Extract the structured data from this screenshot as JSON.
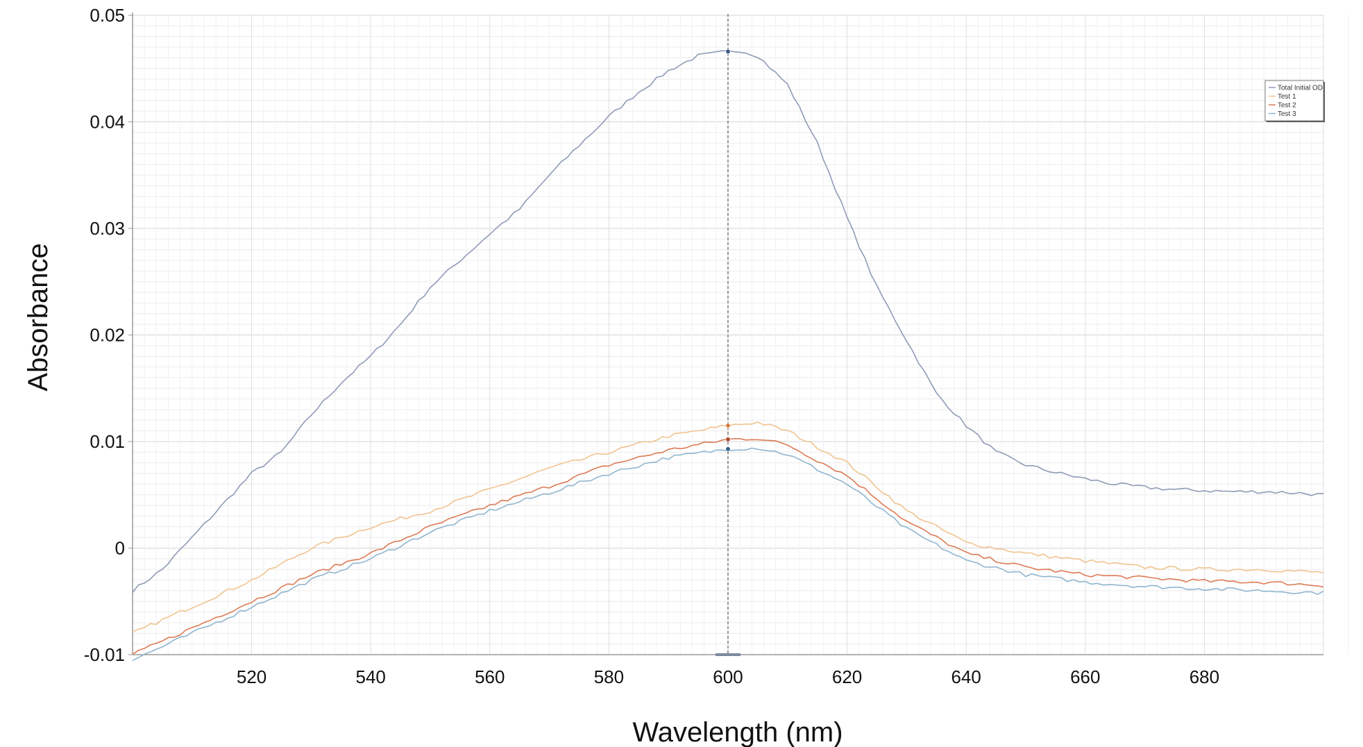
{
  "chart_data": {
    "type": "line",
    "title": "",
    "xlabel": "Wavelength (nm)",
    "ylabel": "Absorbance",
    "xlim": [
      500,
      700
    ],
    "ylim": [
      -0.01,
      0.05
    ],
    "x_ticks": [
      520,
      540,
      560,
      580,
      600,
      620,
      640,
      660,
      680
    ],
    "x_tick_labels": [
      "520",
      "540",
      "560",
      "580",
      "600",
      "620",
      "640",
      "660",
      "680"
    ],
    "y_ticks": [
      -0.01,
      0,
      0.01,
      0.02,
      0.03,
      0.04,
      0.05
    ],
    "y_tick_labels": [
      "-0.01",
      "0",
      "0.01",
      "0.02",
      "0.03",
      "0.04",
      "0.05"
    ],
    "grid": true,
    "legend_position": "top-right",
    "cursor_x": 600,
    "series": [
      {
        "name": "Total Initial OD",
        "color": "#8e9bb5",
        "x": [
          500,
          505,
          510,
          515,
          520,
          525,
          530,
          535,
          540,
          545,
          550,
          555,
          560,
          565,
          570,
          575,
          580,
          585,
          590,
          595,
          600,
          602,
          605,
          610,
          615,
          620,
          625,
          630,
          635,
          640,
          645,
          650,
          655,
          660,
          665,
          670,
          675,
          680,
          685,
          690,
          695,
          700
        ],
        "y": [
          -0.004,
          -0.002,
          0.001,
          0.004,
          0.007,
          0.009,
          0.0125,
          0.0155,
          0.018,
          0.021,
          0.0245,
          0.027,
          0.0295,
          0.0318,
          0.035,
          0.0378,
          0.0405,
          0.0428,
          0.0448,
          0.0462,
          0.0466,
          0.0467,
          0.0462,
          0.0435,
          0.038,
          0.031,
          0.0245,
          0.0195,
          0.0145,
          0.0115,
          0.009,
          0.0078,
          0.0071,
          0.0065,
          0.006,
          0.0057,
          0.0055,
          0.0054,
          0.0053,
          0.0053,
          0.0052,
          0.005
        ]
      },
      {
        "name": "Test 1",
        "color": "#f0c38e",
        "x": [
          500,
          510,
          520,
          530,
          540,
          550,
          560,
          570,
          580,
          590,
          600,
          605,
          610,
          620,
          630,
          640,
          650,
          660,
          670,
          680,
          690,
          700
        ],
        "y": [
          -0.008,
          -0.0055,
          -0.003,
          0.0,
          0.002,
          0.0035,
          0.0055,
          0.0075,
          0.009,
          0.0105,
          0.0115,
          0.0118,
          0.011,
          0.008,
          0.0035,
          0.0005,
          -0.0005,
          -0.0012,
          -0.0018,
          -0.002,
          -0.002,
          -0.0023
        ]
      },
      {
        "name": "Test 2",
        "color": "#dd7a55",
        "x": [
          500,
          510,
          520,
          530,
          540,
          550,
          560,
          570,
          580,
          590,
          600,
          605,
          610,
          620,
          630,
          640,
          650,
          660,
          670,
          680,
          690,
          700
        ],
        "y": [
          -0.01,
          -0.0075,
          -0.005,
          -0.0025,
          -0.0005,
          0.002,
          0.004,
          0.0058,
          0.0078,
          0.0092,
          0.0102,
          0.0103,
          0.0097,
          0.0068,
          0.0025,
          -0.0005,
          -0.0018,
          -0.0025,
          -0.0028,
          -0.0031,
          -0.0032,
          -0.0035
        ]
      },
      {
        "name": "Test 3",
        "color": "#8fb5cf",
        "x": [
          500,
          510,
          520,
          530,
          540,
          550,
          560,
          570,
          580,
          590,
          600,
          605,
          610,
          620,
          630,
          640,
          650,
          660,
          670,
          680,
          690,
          700
        ],
        "y": [
          -0.0105,
          -0.008,
          -0.0055,
          -0.003,
          -0.001,
          0.0015,
          0.0035,
          0.0052,
          0.007,
          0.0085,
          0.0093,
          0.0094,
          0.0088,
          0.006,
          0.0018,
          -0.0012,
          -0.0025,
          -0.0032,
          -0.0036,
          -0.0038,
          -0.004,
          -0.0042
        ]
      }
    ]
  }
}
